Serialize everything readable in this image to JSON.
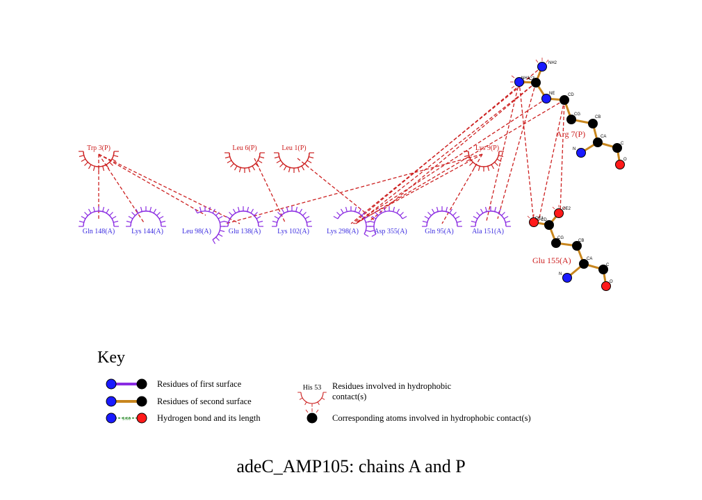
{
  "caption": "adeC_AMP105: chains A and P",
  "colors": {
    "chainP": "#cc1f1f",
    "chainA": "#8a2be2",
    "bond": "#c8861e",
    "nitrogen": "#0000ff",
    "oxygen": "#ff0000",
    "carbon": "#000000",
    "contact": "#cc1f1f",
    "hbond": "#2a8a2a"
  },
  "residues": {
    "chainP": [
      "Trp 3(P)",
      "Leu 6(P)",
      "Leu 1(P)",
      "Lys 9(P)"
    ],
    "chainA": [
      "Gln 148(A)",
      "Lys 144(A)",
      "Leu 98(A)",
      "Glu 138(A)",
      "Lys 102(A)",
      "Lys 298(A)",
      "Asp 355(A)",
      "Gln 95(A)",
      "Ala 151(A)"
    ]
  },
  "arg": {
    "label": "Arg 7(P)",
    "atoms": [
      "NH2",
      "NH1",
      "CZ",
      "NE",
      "CD",
      "CG",
      "CB",
      "CA",
      "N",
      "C",
      "O"
    ]
  },
  "glu": {
    "label": "Glu 155(A)",
    "atoms": [
      "OE1",
      "CD",
      "OE2",
      "CG",
      "CB",
      "CA",
      "N",
      "C",
      "O"
    ]
  },
  "key": {
    "title": "Key",
    "first_surface": "Residues of first surface",
    "second_surface": "Residues of second surface",
    "hbond": "Hydrogen bond and its length",
    "hbond_length": "3.00",
    "sample_residue": "His 53",
    "hydrophobic_line1": "Residues involved in hydrophobic",
    "hydrophobic_line2": "contact(s)",
    "corresponding": "Corresponding atoms involved in hydrophobic contact(s)"
  }
}
